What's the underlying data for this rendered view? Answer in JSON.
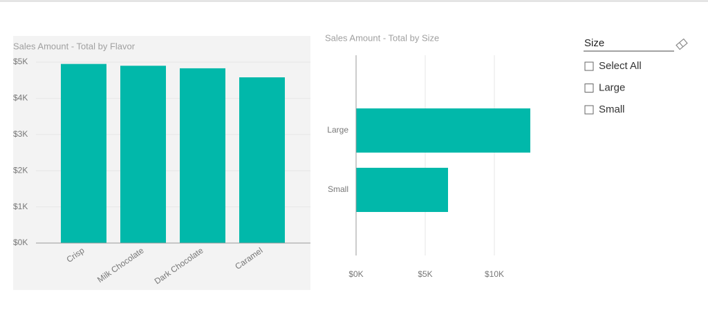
{
  "chart_data": [
    {
      "type": "bar",
      "title": "Sales Amount - Total by Flavor",
      "categories": [
        "Crisp",
        "Milk Chocolate",
        "Dark Chocolate",
        "Caramel"
      ],
      "values": [
        4950,
        4900,
        4830,
        4580
      ],
      "color": "#01b8aa",
      "ylim": [
        0,
        5000
      ],
      "yticks": [
        {
          "value": 0,
          "label": "$0K"
        },
        {
          "value": 1000,
          "label": "$1K"
        },
        {
          "value": 2000,
          "label": "$2K"
        },
        {
          "value": 3000,
          "label": "$3K"
        },
        {
          "value": 4000,
          "label": "$4K"
        },
        {
          "value": 5000,
          "label": "$5K"
        }
      ],
      "grid": true
    },
    {
      "type": "bar",
      "orientation": "horizontal",
      "title": "Sales Amount - Total by Size",
      "categories": [
        "Large",
        "Small"
      ],
      "values": [
        12600,
        6650
      ],
      "color": "#01b8aa",
      "xlim": [
        0,
        13000
      ],
      "xticks": [
        {
          "value": 0,
          "label": "$0K"
        },
        {
          "value": 5000,
          "label": "$5K"
        },
        {
          "value": 10000,
          "label": "$10K"
        }
      ],
      "grid": true
    }
  ],
  "slicer": {
    "title": "Size",
    "items": [
      "Select All",
      "Large",
      "Small"
    ]
  }
}
